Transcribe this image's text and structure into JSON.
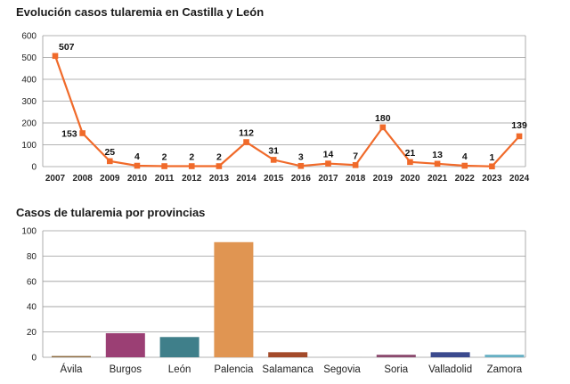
{
  "chart_data": [
    {
      "type": "line",
      "title": "Evolución casos tularemia en Castilla y León",
      "categories": [
        "2007",
        "2008",
        "2009",
        "2010",
        "2011",
        "2012",
        "2013",
        "2014",
        "2015",
        "2016",
        "2017",
        "2018",
        "2019",
        "2020",
        "2021",
        "2022",
        "2023",
        "2024"
      ],
      "series": [
        {
          "values": [
            507,
            153,
            25,
            4,
            2,
            2,
            2,
            112,
            31,
            3,
            14,
            7,
            180,
            21,
            13,
            4,
            1,
            139
          ]
        }
      ],
      "data_labels": [
        "507",
        "153",
        "25",
        "4",
        "2",
        "2",
        "2",
        "112",
        "31",
        "3",
        "14",
        "7",
        "180",
        "21",
        "13",
        "4",
        "1",
        "139"
      ],
      "ylim": [
        0,
        600
      ],
      "yticks": [
        0,
        100,
        200,
        300,
        400,
        500,
        600
      ],
      "grid": true,
      "color": "#f06a2a"
    },
    {
      "type": "bar",
      "title": "Casos de tularemia por provincias",
      "categories": [
        "Ávila",
        "Burgos",
        "León",
        "Palencia",
        "Salamanca",
        "Segovia",
        "Soria",
        "Valladolid",
        "Zamora"
      ],
      "values": [
        1,
        19,
        16,
        91,
        4,
        0,
        2,
        4,
        2
      ],
      "colors": [
        "#8c6a3e",
        "#9b3f74",
        "#3f7f8a",
        "#e09552",
        "#a34a2a",
        "#cfcfcf",
        "#8b4a6e",
        "#3b4a8e",
        "#67b0c4"
      ],
      "ylim": [
        0,
        100
      ],
      "yticks": [
        0,
        20,
        40,
        60,
        80,
        100
      ],
      "grid": true
    }
  ]
}
